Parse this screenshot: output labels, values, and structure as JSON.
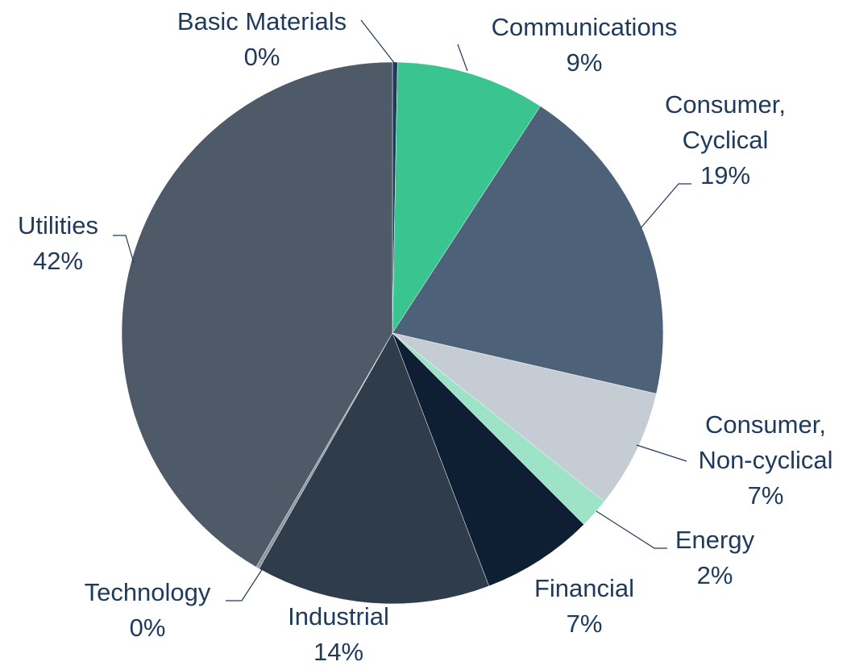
{
  "chart_data": {
    "type": "pie",
    "categories": [
      "Basic Materials",
      "Communications",
      "Consumer, Cyclical",
      "Consumer, Non-cyclical",
      "Energy",
      "Financial",
      "Industrial",
      "Technology",
      "Utilities"
    ],
    "values": [
      0.3,
      8.9,
      19.4,
      7.1,
      1.8,
      6.7,
      14,
      0.2,
      41.6
    ],
    "value_labels": [
      "0%",
      "9%",
      "19%",
      "7%",
      "2%",
      "7%",
      "14%",
      "0%",
      "42%"
    ],
    "colors": [
      "#1f3a5a",
      "#3ac48f",
      "#4d6279",
      "#c5ccd3",
      "#9de3c8",
      "#0e1f33",
      "#2e3c4b",
      "#8a96a0",
      "#4e5a68"
    ]
  }
}
